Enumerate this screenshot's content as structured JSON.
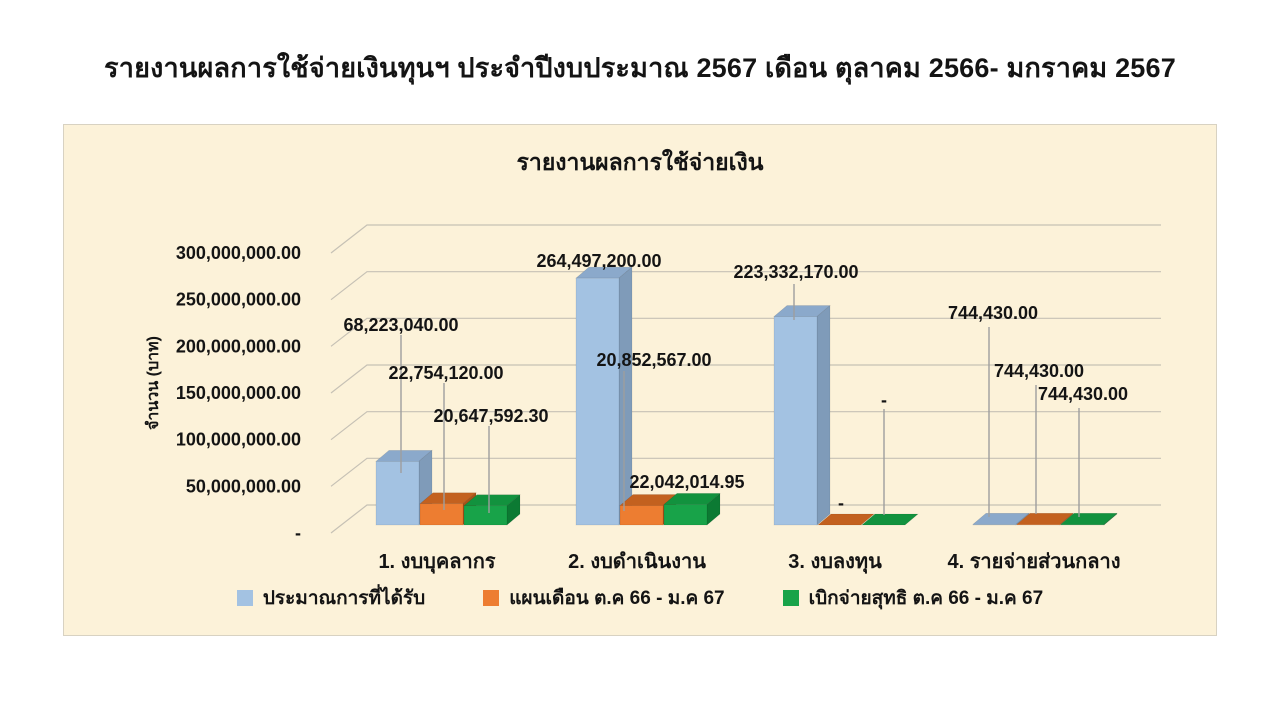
{
  "page_title": "รายงานผลการใช้จ่ายเงินทุนฯ ประจำปีงบประมาณ 2567 เดือน ตุลาคม 2566- มกราคม 2567",
  "colors": {
    "page_background": "#FFFFFF",
    "chart_background": "#FCF2D9",
    "chart_border": "#D8D2C2",
    "gridline": "#C6C1B5",
    "leader_line": "#9E9E9E",
    "text": "#141414"
  },
  "chart_data": {
    "type": "bar",
    "projection": "3d-clustered-column",
    "title": "รายงานผลการใช้จ่ายเงิน",
    "ylabel": "จำนวน (บาท)",
    "ylim": [
      0,
      300000000
    ],
    "y_tick_interval": 50000000,
    "y_tick_labels_top_to_bottom": [
      "300,000,000.00",
      "250,000,000.00",
      "200,000,000.00",
      "150,000,000.00",
      "100,000,000.00",
      "50,000,000.00",
      "-"
    ],
    "categories": [
      "1. งบบุคลากร",
      "2. งบดำเนินงาน",
      "3. งบลงทุน",
      "4. รายจ่ายส่วนกลาง"
    ],
    "series": [
      {
        "name": "ประมาณการที่ได้รับ",
        "color": "#A3C2E2",
        "top_color": "#8BA9CB",
        "side_color": "#7F9BB9",
        "values": [
          68223040.0,
          264497200.0,
          223332170.0,
          744430.0
        ],
        "labels": [
          "68,223,040.00",
          "264,497,200.00",
          "223,332,170.00",
          "744,430.00"
        ]
      },
      {
        "name": "แผนเดือน ต.ค 66 - ม.ค 67",
        "color": "#ED7D31",
        "top_color": "#C3611F",
        "side_color": "#A85418",
        "values": [
          22754120.0,
          20852567.0,
          null,
          744430.0
        ],
        "labels": [
          "22,754,120.00",
          "20,852,567.00",
          "-",
          "744,430.00"
        ]
      },
      {
        "name": "เบิกจ่ายสุทธิ ต.ค 66 - ม.ค 67",
        "color": "#18A349",
        "top_color": "#12923E",
        "side_color": "#0C7A33",
        "values": [
          20647592.3,
          22042014.95,
          null,
          744430.0
        ],
        "labels": [
          "20,647,592.30",
          "22,042,014.95",
          "-",
          "744,430.00"
        ]
      }
    ],
    "legend_position": "bottom",
    "grid": true
  }
}
